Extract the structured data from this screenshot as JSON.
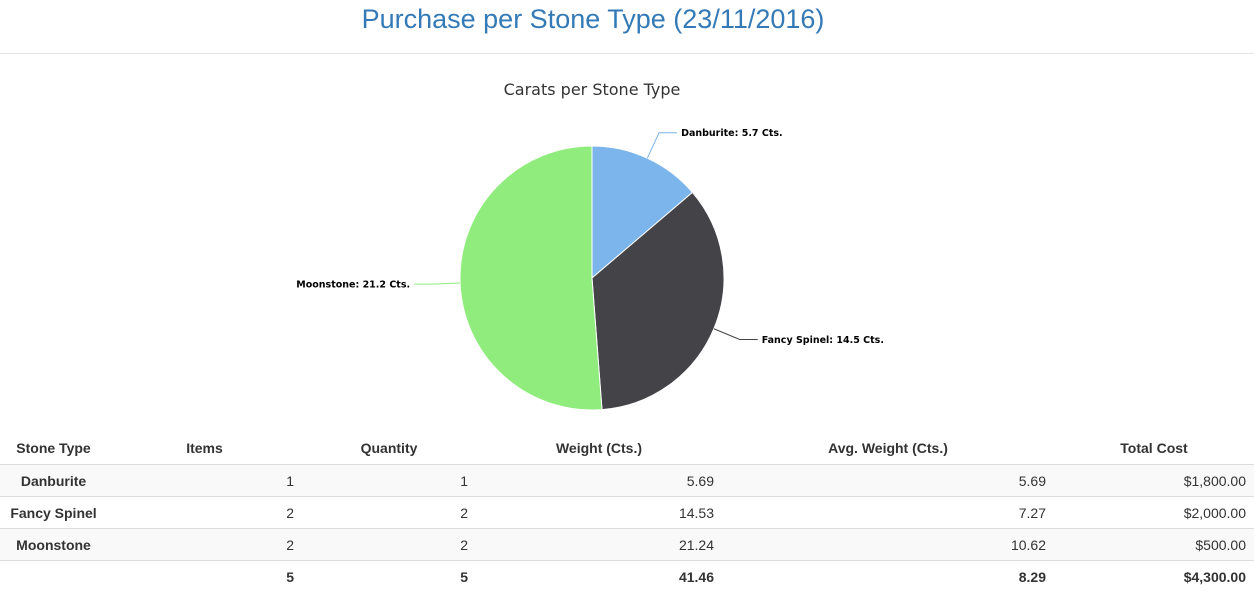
{
  "page": {
    "title": "Purchase per Stone Type (23/11/2016)"
  },
  "chart_data": {
    "type": "pie",
    "title": "Carats per Stone Type",
    "unit": "Cts.",
    "slices": [
      {
        "label": "Danburite",
        "value": 5.7,
        "color": "#7cb5ec"
      },
      {
        "label": "Fancy Spinel",
        "value": 14.5,
        "color": "#434348"
      },
      {
        "label": "Moonstone",
        "value": 21.2,
        "color": "#90ed7d"
      }
    ]
  },
  "table": {
    "headers": [
      "Stone Type",
      "Items",
      "Quantity",
      "Weight (Cts.)",
      "Avg. Weight (Cts.)",
      "Total Cost"
    ],
    "rows": [
      {
        "stone_type": "Danburite",
        "items": "1",
        "quantity": "1",
        "weight": "5.69",
        "avg_weight": "5.69",
        "total_cost": "$1,800.00"
      },
      {
        "stone_type": "Fancy Spinel",
        "items": "2",
        "quantity": "2",
        "weight": "14.53",
        "avg_weight": "7.27",
        "total_cost": "$2,000.00"
      },
      {
        "stone_type": "Moonstone",
        "items": "2",
        "quantity": "2",
        "weight": "21.24",
        "avg_weight": "10.62",
        "total_cost": "$500.00"
      }
    ],
    "totals": {
      "stone_type": "",
      "items": "5",
      "quantity": "5",
      "weight": "41.46",
      "avg_weight": "8.29",
      "total_cost": "$4,300.00"
    }
  }
}
